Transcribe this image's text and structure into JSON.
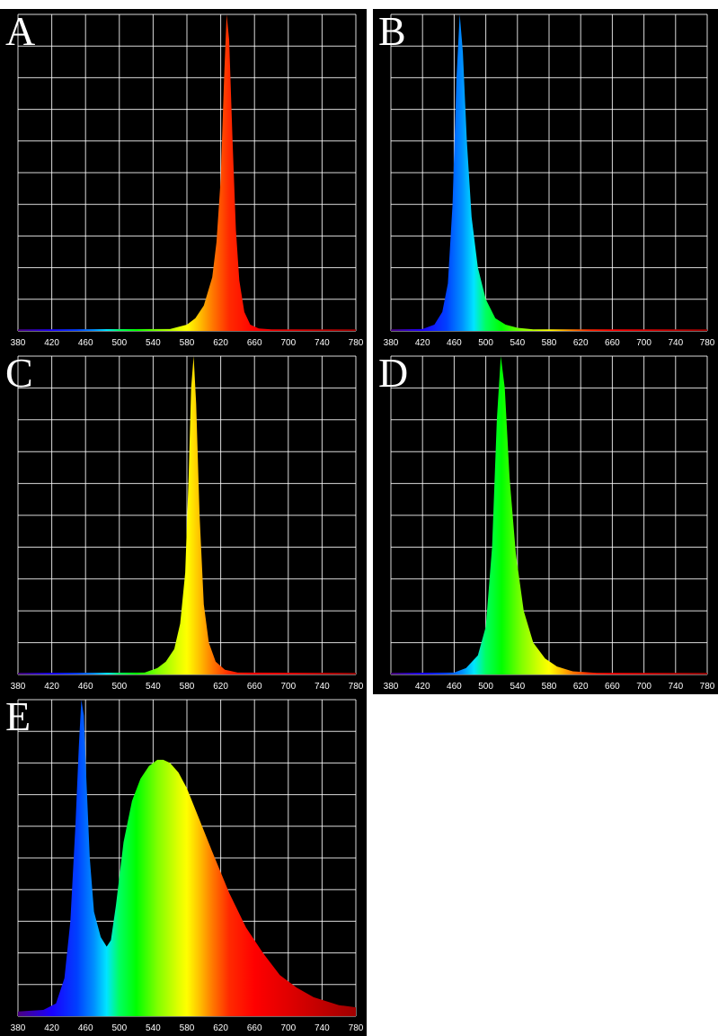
{
  "chart_data": [
    {
      "type": "area",
      "panel_label": "A",
      "title": "",
      "xlabel": "",
      "ylabel": "",
      "xlim": [
        380,
        780
      ],
      "ylim": [
        0,
        1
      ],
      "grid": true,
      "x_ticks": [
        380,
        420,
        460,
        500,
        540,
        580,
        620,
        660,
        700,
        740,
        780
      ],
      "series": [
        {
          "x": [
            380,
            560,
            580,
            590,
            600,
            610,
            615,
            620,
            624,
            627,
            630,
            634,
            638,
            642,
            648,
            655,
            665,
            680,
            780
          ],
          "values": [
            0.005,
            0.006,
            0.02,
            0.04,
            0.08,
            0.17,
            0.28,
            0.48,
            0.8,
            1.0,
            0.92,
            0.6,
            0.32,
            0.16,
            0.06,
            0.02,
            0.008,
            0.005,
            0.005
          ]
        }
      ]
    },
    {
      "type": "area",
      "panel_label": "B",
      "title": "",
      "xlabel": "",
      "ylabel": "",
      "xlim": [
        380,
        780
      ],
      "ylim": [
        0,
        1
      ],
      "grid": true,
      "x_ticks": [
        380,
        420,
        460,
        500,
        540,
        580,
        620,
        660,
        700,
        740,
        780
      ],
      "series": [
        {
          "x": [
            380,
            420,
            435,
            445,
            452,
            458,
            463,
            467,
            471,
            476,
            482,
            490,
            500,
            512,
            525,
            540,
            560,
            780
          ],
          "values": [
            0.005,
            0.006,
            0.02,
            0.06,
            0.15,
            0.4,
            0.8,
            1.0,
            0.88,
            0.6,
            0.36,
            0.2,
            0.1,
            0.04,
            0.02,
            0.01,
            0.005,
            0.005
          ]
        }
      ]
    },
    {
      "type": "area",
      "panel_label": "C",
      "title": "",
      "xlabel": "",
      "ylabel": "",
      "xlim": [
        380,
        780
      ],
      "ylim": [
        0,
        1
      ],
      "grid": true,
      "x_ticks": [
        380,
        420,
        460,
        500,
        540,
        580,
        620,
        660,
        700,
        740,
        780
      ],
      "series": [
        {
          "x": [
            380,
            530,
            545,
            555,
            565,
            572,
            578,
            582,
            585,
            588,
            591,
            595,
            600,
            606,
            614,
            625,
            640,
            780
          ],
          "values": [
            0.005,
            0.006,
            0.02,
            0.04,
            0.08,
            0.16,
            0.32,
            0.62,
            0.9,
            1.0,
            0.85,
            0.5,
            0.22,
            0.1,
            0.04,
            0.015,
            0.006,
            0.005
          ]
        }
      ]
    },
    {
      "type": "area",
      "panel_label": "D",
      "title": "",
      "xlabel": "",
      "ylabel": "",
      "xlim": [
        380,
        780
      ],
      "ylim": [
        0,
        1
      ],
      "grid": true,
      "x_ticks": [
        380,
        420,
        460,
        500,
        540,
        580,
        620,
        660,
        700,
        740,
        780
      ],
      "series": [
        {
          "x": [
            380,
            460,
            475,
            490,
            500,
            508,
            514,
            519,
            524,
            530,
            538,
            548,
            560,
            575,
            590,
            610,
            640,
            780
          ],
          "values": [
            0.005,
            0.006,
            0.02,
            0.06,
            0.15,
            0.4,
            0.8,
            1.0,
            0.9,
            0.62,
            0.38,
            0.2,
            0.1,
            0.05,
            0.025,
            0.01,
            0.005,
            0.005
          ]
        }
      ]
    },
    {
      "type": "area",
      "panel_label": "E",
      "title": "",
      "xlabel": "",
      "ylabel": "",
      "xlim": [
        380,
        780
      ],
      "ylim": [
        0,
        1
      ],
      "grid": true,
      "x_ticks": [
        380,
        420,
        460,
        500,
        540,
        580,
        620,
        660,
        700,
        740,
        780
      ],
      "series": [
        {
          "x": [
            380,
            410,
            425,
            435,
            442,
            448,
            452,
            455,
            458,
            461,
            465,
            470,
            478,
            485,
            490,
            496,
            505,
            515,
            525,
            535,
            545,
            552,
            560,
            570,
            580,
            595,
            610,
            630,
            650,
            670,
            690,
            710,
            730,
            760,
            780
          ],
          "values": [
            0.015,
            0.02,
            0.04,
            0.12,
            0.3,
            0.6,
            0.85,
            1.0,
            0.95,
            0.75,
            0.5,
            0.33,
            0.25,
            0.22,
            0.24,
            0.35,
            0.55,
            0.68,
            0.75,
            0.79,
            0.81,
            0.81,
            0.8,
            0.77,
            0.72,
            0.62,
            0.52,
            0.39,
            0.28,
            0.2,
            0.13,
            0.09,
            0.06,
            0.035,
            0.028
          ]
        }
      ]
    }
  ]
}
